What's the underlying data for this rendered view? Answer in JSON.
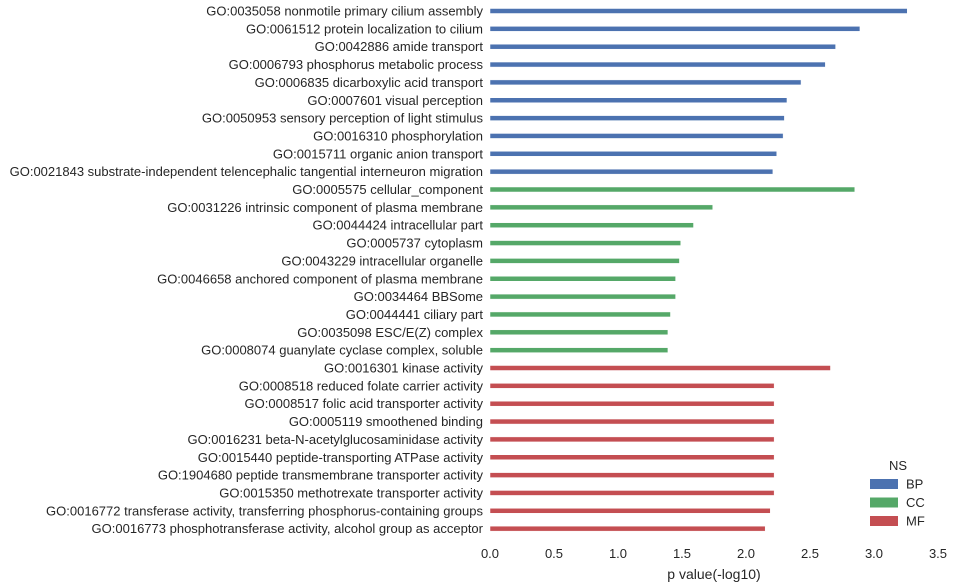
{
  "chart_data": {
    "type": "bar",
    "orientation": "horizontal",
    "xlabel": "p value(-log10)",
    "xlim": [
      0,
      3.5
    ],
    "xticks": [
      "0.0",
      "0.5",
      "1.0",
      "1.5",
      "2.0",
      "2.5",
      "3.0",
      "3.5"
    ],
    "grid": false,
    "legend": {
      "title": "NS",
      "placement": "bottom-right",
      "entries": [
        {
          "name": "BP",
          "color": "#4c72b0"
        },
        {
          "name": "CC",
          "color": "#55a868"
        },
        {
          "name": "MF",
          "color": "#c44e52"
        }
      ]
    },
    "bars": [
      {
        "label": "GO:0035058 nonmotile primary cilium assembly",
        "ns": "BP",
        "value": 3.26
      },
      {
        "label": "GO:0061512 protein localization to cilium",
        "ns": "BP",
        "value": 2.89
      },
      {
        "label": "GO:0042886 amide transport",
        "ns": "BP",
        "value": 2.7
      },
      {
        "label": "GO:0006793 phosphorus metabolic process",
        "ns": "BP",
        "value": 2.62
      },
      {
        "label": "GO:0006835 dicarboxylic acid transport",
        "ns": "BP",
        "value": 2.43
      },
      {
        "label": "GO:0007601 visual perception",
        "ns": "BP",
        "value": 2.32
      },
      {
        "label": "GO:0050953 sensory perception of light stimulus",
        "ns": "BP",
        "value": 2.3
      },
      {
        "label": "GO:0016310 phosphorylation",
        "ns": "BP",
        "value": 2.29
      },
      {
        "label": "GO:0015711 organic anion transport",
        "ns": "BP",
        "value": 2.24
      },
      {
        "label": "GO:0021843 substrate-independent telencephalic tangential interneuron migration",
        "ns": "BP",
        "value": 2.21
      },
      {
        "label": "GO:0005575 cellular_component",
        "ns": "CC",
        "value": 2.85
      },
      {
        "label": "GO:0031226 intrinsic component of plasma membrane",
        "ns": "CC",
        "value": 1.74
      },
      {
        "label": "GO:0044424 intracellular part",
        "ns": "CC",
        "value": 1.59
      },
      {
        "label": "GO:0005737 cytoplasm",
        "ns": "CC",
        "value": 1.49
      },
      {
        "label": "GO:0043229 intracellular organelle",
        "ns": "CC",
        "value": 1.48
      },
      {
        "label": "GO:0046658 anchored component of plasma membrane",
        "ns": "CC",
        "value": 1.45
      },
      {
        "label": "GO:0034464 BBSome",
        "ns": "CC",
        "value": 1.45
      },
      {
        "label": "GO:0044441 ciliary part",
        "ns": "CC",
        "value": 1.41
      },
      {
        "label": "GO:0035098 ESC/E(Z) complex",
        "ns": "CC",
        "value": 1.39
      },
      {
        "label": "GO:0008074 guanylate cyclase complex, soluble",
        "ns": "CC",
        "value": 1.39
      },
      {
        "label": "GO:0016301 kinase activity",
        "ns": "MF",
        "value": 2.66
      },
      {
        "label": "GO:0008518 reduced folate carrier activity",
        "ns": "MF",
        "value": 2.22
      },
      {
        "label": "GO:0008517 folic acid transporter activity",
        "ns": "MF",
        "value": 2.22
      },
      {
        "label": "GO:0005119 smoothened binding",
        "ns": "MF",
        "value": 2.22
      },
      {
        "label": "GO:0016231 beta-N-acetylglucosaminidase activity",
        "ns": "MF",
        "value": 2.22
      },
      {
        "label": "GO:0015440 peptide-transporting ATPase activity",
        "ns": "MF",
        "value": 2.22
      },
      {
        "label": "GO:1904680 peptide transmembrane transporter activity",
        "ns": "MF",
        "value": 2.22
      },
      {
        "label": "GO:0015350 methotrexate transporter activity",
        "ns": "MF",
        "value": 2.22
      },
      {
        "label": "GO:0016772 transferase activity, transferring phosphorus-containing groups",
        "ns": "MF",
        "value": 2.19
      },
      {
        "label": "GO:0016773 phosphotransferase activity, alcohol group as acceptor",
        "ns": "MF",
        "value": 2.15
      }
    ]
  }
}
